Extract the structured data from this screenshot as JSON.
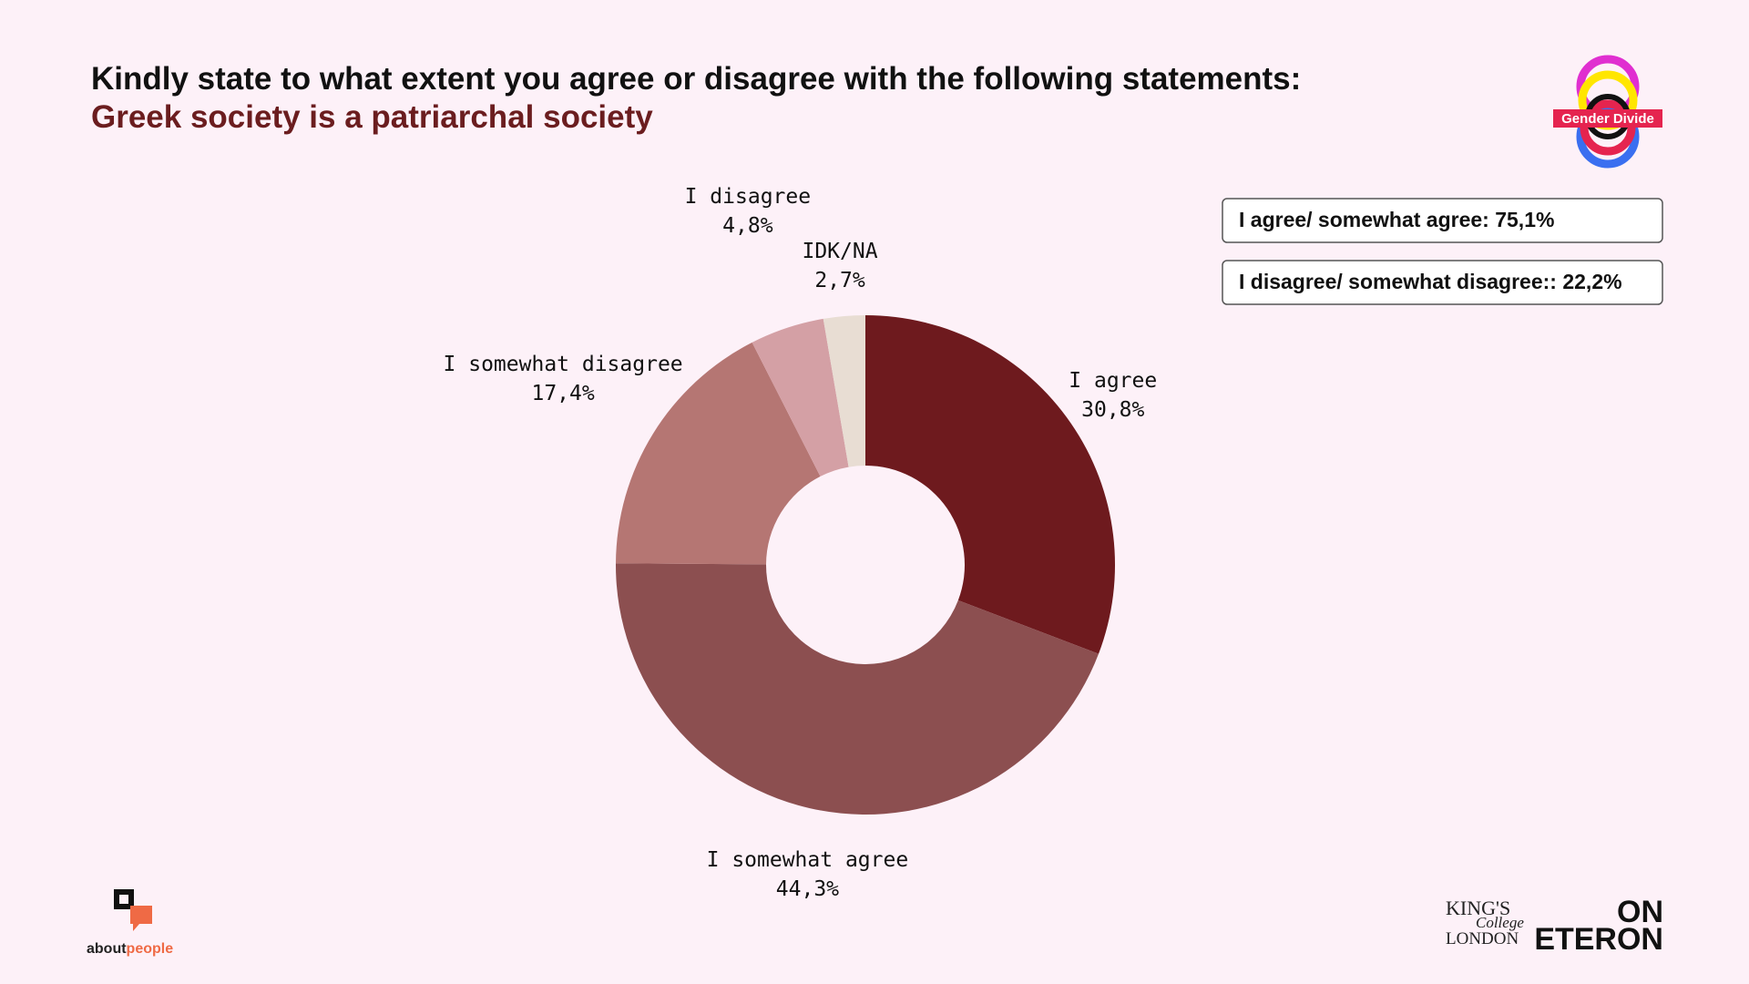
{
  "chart_data": {
    "type": "donut",
    "title": "Kindly state to what extent you agree or disagree with the following statements:",
    "subtitle": "Greek society is a patriarchal society",
    "categories": [
      "I agree",
      "I somewhat agree",
      "I somewhat disagree",
      "I disagree",
      "IDK/NA"
    ],
    "values": [
      30.8,
      44.3,
      17.4,
      4.8,
      2.7
    ],
    "value_labels": [
      "30,8%",
      "44,3%",
      "17,4%",
      "4,8%",
      "2,7%"
    ],
    "colors": [
      "#6e1a1e",
      "#8c4f50",
      "#b57673",
      "#d4a0a5",
      "#e8ddd3"
    ],
    "annotations": [
      "I agree/ somewhat agree: 75,1%",
      "I disagree/ somewhat disagree:: 22,2%"
    ]
  },
  "logos": {
    "gender_divide": "Gender Divide",
    "about": "about",
    "people": "people",
    "kings_1": "KING'S",
    "kings_2": "College",
    "kings_3": "LONDON",
    "eteron_1": "ON",
    "eteron_2": "ETERON"
  }
}
